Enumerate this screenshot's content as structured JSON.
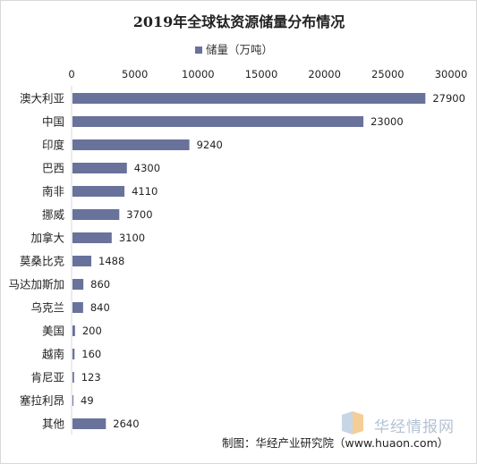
{
  "chart_data": {
    "type": "bar",
    "orientation": "horizontal",
    "title": "2019年全球钛资源储量分布情况",
    "categories": [
      "澳大利亚",
      "中国",
      "印度",
      "巴西",
      "南非",
      "挪威",
      "加拿大",
      "莫桑比克",
      "马达加斯加",
      "乌克兰",
      "美国",
      "越南",
      "肯尼亚",
      "塞拉利昂",
      "其他"
    ],
    "series": [
      {
        "name": "储量（万吨）",
        "values": [
          27900,
          23000,
          9240,
          4300,
          4110,
          3700,
          3100,
          1488,
          860,
          840,
          200,
          160,
          123,
          49,
          2640
        ]
      }
    ],
    "xlim": [
      0,
      30000
    ],
    "x_ticks": [
      "0",
      "5000",
      "10000",
      "15000",
      "20000",
      "25000",
      "30000"
    ],
    "xaxis_position": "top",
    "legend_position": "top",
    "grid": false,
    "bar_color": "#68729b"
  },
  "source": "制图：华经产业研究院（www.huaon.com）",
  "watermark": {
    "text": "华经情报网",
    "icon": "huajing-logo-icon"
  }
}
